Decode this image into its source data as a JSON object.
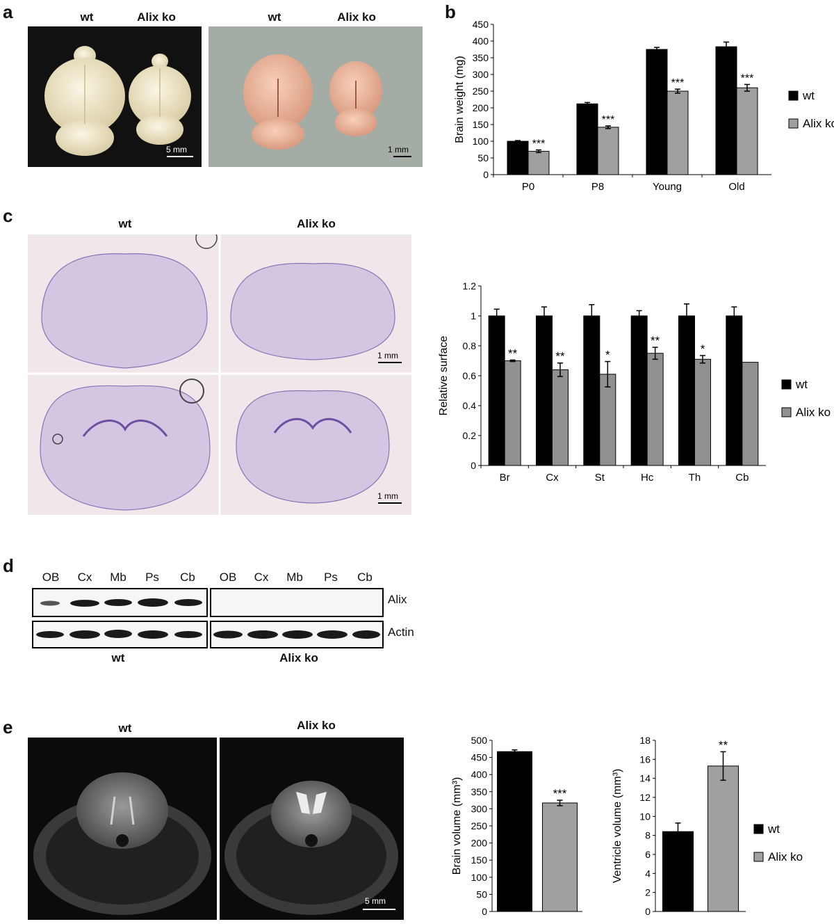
{
  "panels": {
    "a": {
      "label": "a",
      "left_photo": {
        "headers": [
          "wt",
          "Alix ko"
        ],
        "scale": "5 mm"
      },
      "right_photo": {
        "headers": [
          "wt",
          "Alix ko"
        ],
        "scale": "1 mm"
      }
    },
    "b": {
      "label": "b"
    },
    "c": {
      "label": "c",
      "headers": [
        "wt",
        "Alix ko"
      ],
      "scale_top": "1 mm",
      "scale_bottom": "1 mm"
    },
    "d": {
      "label": "d",
      "lanes": [
        "OB",
        "Cx",
        "Mb",
        "Ps",
        "Cb"
      ],
      "rows": [
        "Alix",
        "Actin"
      ],
      "groups": [
        "wt",
        "Alix ko"
      ]
    },
    "e": {
      "label": "e",
      "headers": [
        "wt",
        "Alix ko"
      ],
      "scale": "5 mm"
    }
  },
  "colors": {
    "wt": "#000000",
    "alix_ko": "#a0a0a0",
    "alix_ko_c": "#909090"
  },
  "chart_data": [
    {
      "id": "b",
      "type": "bar",
      "categories": [
        "P0",
        "P8",
        "Young",
        "Old"
      ],
      "series": [
        {
          "name": "wt",
          "values": [
            100,
            212,
            375,
            383
          ],
          "errors": [
            2,
            4,
            6,
            14
          ]
        },
        {
          "name": "Alix ko",
          "values": [
            70,
            142,
            250,
            260
          ],
          "errors": [
            4,
            4,
            6,
            10
          ]
        }
      ],
      "significance": [
        "***",
        "***",
        "***",
        "***"
      ],
      "ylabel": "Brain weight (mg)",
      "ylim": [
        0,
        450
      ],
      "yticks": [
        0,
        50,
        100,
        150,
        200,
        250,
        300,
        350,
        400,
        450
      ],
      "legend": [
        "wt",
        "Alix ko"
      ]
    },
    {
      "id": "c",
      "type": "bar",
      "categories": [
        "Br",
        "Cx",
        "St",
        "Hc",
        "Th",
        "Cb"
      ],
      "series": [
        {
          "name": "wt",
          "values": [
            1,
            1,
            1,
            1,
            1,
            1
          ],
          "errors": [
            0.045,
            0.06,
            0.075,
            0.035,
            0.08,
            0.06
          ]
        },
        {
          "name": "Alix ko",
          "values": [
            0.7,
            0.64,
            0.61,
            0.75,
            0.71,
            0.69
          ],
          "errors": [
            0.005,
            0.045,
            0.085,
            0.04,
            0.025,
            0
          ]
        }
      ],
      "significance": [
        "**",
        "**",
        "*",
        "**",
        "*",
        ""
      ],
      "ylabel": "Relative surface",
      "ylim": [
        0,
        1.2
      ],
      "yticks": [
        "0",
        "0.2",
        "0.4",
        "0.6",
        "0.8",
        "1",
        "1.2"
      ],
      "legend": [
        "wt",
        "Alix ko"
      ]
    },
    {
      "id": "e1",
      "type": "bar",
      "categories": [
        "wt",
        "Alix ko"
      ],
      "values": [
        467,
        317
      ],
      "errors": [
        5,
        8
      ],
      "significance": [
        "",
        "***"
      ],
      "ylabel": "Brain volume (mm³)",
      "ylim": [
        0,
        500
      ],
      "yticks": [
        0,
        50,
        100,
        150,
        200,
        250,
        300,
        350,
        400,
        450,
        500
      ]
    },
    {
      "id": "e2",
      "type": "bar",
      "categories": [
        "wt",
        "Alix ko"
      ],
      "values": [
        8.4,
        15.3
      ],
      "errors": [
        0.9,
        1.5
      ],
      "significance": [
        "",
        "**"
      ],
      "ylabel": "Ventricle volume (mm³)",
      "ylim": [
        0,
        18
      ],
      "yticks": [
        0,
        2,
        4,
        6,
        8,
        10,
        12,
        14,
        16,
        18
      ],
      "legend": [
        "wt",
        "Alix ko"
      ]
    }
  ]
}
